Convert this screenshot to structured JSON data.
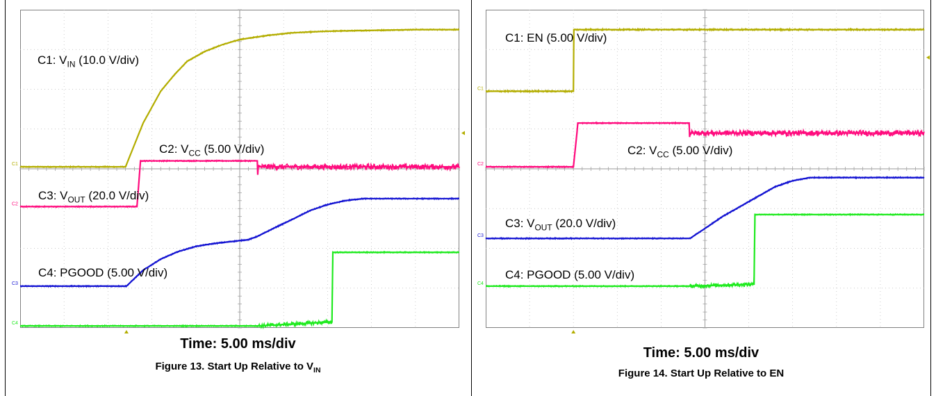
{
  "figures": [
    {
      "timebase": "Time: 5.00 ms/div",
      "caption": {
        "text": "Figure 13. Start Up Relative to V",
        "sub": "IN"
      },
      "labels": [
        {
          "pre": "C1: V",
          "sub": "IN",
          "post": " (10.0 V/div)"
        },
        {
          "pre": "C2: V",
          "sub": "CC",
          "post": " (5.00 V/div)"
        },
        {
          "pre": "C3: V",
          "sub": "OUT",
          "post": " (20.0 V/div)"
        },
        {
          "pre": "C4: PGOOD (5.00 V/div)",
          "sub": "",
          "post": ""
        }
      ]
    },
    {
      "timebase": "Time: 5.00 ms/div",
      "caption": {
        "text": "Figure 14. Start Up Relative to EN",
        "sub": ""
      },
      "labels": [
        {
          "pre": "C1: EN (5.00 V/div)",
          "sub": "",
          "post": ""
        },
        {
          "pre": "C2: V",
          "sub": "CC",
          "post": " (5.00 V/div)"
        },
        {
          "pre": "C3: V",
          "sub": "OUT",
          "post": " (20.0 V/div)"
        },
        {
          "pre": "C4: PGOOD (5.00 V/div)",
          "sub": "",
          "post": ""
        }
      ]
    }
  ],
  "chart_data": [
    {
      "type": "line",
      "title": "Figure 13. Start Up Relative to VIN",
      "xlabel": "Time: 5.00 ms/div",
      "xlim": [
        0,
        50
      ],
      "ylim": [
        -4,
        4
      ],
      "grid": true,
      "trigger_marker_x": 12.1,
      "channel_markers": [
        {
          "name": "C1",
          "y": 0.05
        },
        {
          "name": "C2",
          "y": -0.95
        },
        {
          "name": "C3",
          "y": -2.95
        },
        {
          "name": "C4",
          "y": -3.95
        }
      ],
      "colors": {
        "C1": "#b3ad00",
        "C2": "#ff0a7d",
        "C3": "#1414d2",
        "C4": "#1eea1e"
      },
      "series": [
        {
          "name": "C1",
          "noise": 0.03,
          "x": [
            0,
            12.0,
            13.0,
            14.0,
            15.0,
            16.0,
            17.5,
            19.0,
            21.0,
            23.0,
            25.0,
            28.0,
            31.0,
            35.0,
            40.0,
            45.0,
            50.0
          ],
          "y": [
            0.05,
            0.05,
            0.6,
            1.15,
            1.55,
            1.95,
            2.35,
            2.7,
            2.95,
            3.12,
            3.25,
            3.35,
            3.42,
            3.46,
            3.48,
            3.5,
            3.5
          ]
        },
        {
          "name": "C2",
          "noise": 0.03,
          "noise_after": {
            "x": 27.1,
            "amount": 0.14
          },
          "x": [
            0,
            13.3,
            13.6,
            13.7,
            27.0,
            27.05,
            27.1,
            50.0
          ],
          "y": [
            -0.95,
            -0.95,
            -0.1,
            0.2,
            0.2,
            -0.15,
            0.05,
            0.05
          ]
        },
        {
          "name": "C3",
          "noise": 0.03,
          "x": [
            0,
            12.1,
            14.0,
            16.0,
            18.0,
            20.0,
            22.0,
            24.0,
            26.0,
            27.0,
            29.0,
            31.0,
            33.0,
            35.0,
            37.0,
            39.0,
            41.0,
            45.0,
            50.0
          ],
          "y": [
            -2.95,
            -2.95,
            -2.55,
            -2.27,
            -2.08,
            -1.95,
            -1.88,
            -1.83,
            -1.78,
            -1.7,
            -1.48,
            -1.27,
            -1.05,
            -0.9,
            -0.8,
            -0.75,
            -0.75,
            -0.75,
            -0.75
          ]
        },
        {
          "name": "C4",
          "noise": 0.03,
          "noise_window": {
            "from": 27.0,
            "to": 35.5,
            "amount": 0.1
          },
          "x": [
            0,
            27.0,
            35.5,
            35.6,
            50.0
          ],
          "y": [
            -3.95,
            -3.95,
            -3.85,
            -2.1,
            -2.1
          ]
        }
      ]
    },
    {
      "type": "line",
      "title": "Figure 14. Start Up Relative to EN",
      "xlabel": "Time: 5.00 ms/div",
      "xlim": [
        0,
        50
      ],
      "ylim": [
        -4,
        4
      ],
      "grid": true,
      "trigger_marker_x": 10.0,
      "channel_markers": [
        {
          "name": "C1",
          "y": 1.95
        },
        {
          "name": "C2",
          "y": 0.05
        },
        {
          "name": "C3",
          "y": -1.75
        },
        {
          "name": "C4",
          "y": -2.95
        }
      ],
      "colors": {
        "C1": "#b3ad00",
        "C2": "#ff0a7d",
        "C3": "#1414d2",
        "C4": "#1eea1e"
      },
      "series": [
        {
          "name": "C1",
          "noise": 0.04,
          "x": [
            0,
            10.0,
            10.05,
            50.0
          ],
          "y": [
            1.95,
            1.95,
            3.5,
            3.5
          ]
        },
        {
          "name": "C2",
          "noise": 0.03,
          "noise_after": {
            "x": 23.3,
            "amount": 0.14
          },
          "x": [
            0,
            10.0,
            10.4,
            10.5,
            23.2,
            23.25,
            23.3,
            50.0
          ],
          "y": [
            0.05,
            0.05,
            0.9,
            1.15,
            1.15,
            0.8,
            0.9,
            0.9
          ]
        },
        {
          "name": "C3",
          "noise": 0.03,
          "x": [
            0,
            23.3,
            25.0,
            27.0,
            29.0,
            31.0,
            33.0,
            35.0,
            37.0,
            40.0,
            45.0,
            50.0
          ],
          "y": [
            -1.75,
            -1.75,
            -1.5,
            -1.2,
            -0.95,
            -0.7,
            -0.45,
            -0.3,
            -0.22,
            -0.22,
            -0.22,
            -0.22
          ]
        },
        {
          "name": "C4",
          "noise": 0.03,
          "noise_window": {
            "from": 23.3,
            "to": 30.6,
            "amount": 0.1
          },
          "x": [
            0,
            23.3,
            30.6,
            30.7,
            50.0
          ],
          "y": [
            -2.95,
            -2.95,
            -2.9,
            -1.15,
            -1.15
          ]
        }
      ]
    }
  ]
}
